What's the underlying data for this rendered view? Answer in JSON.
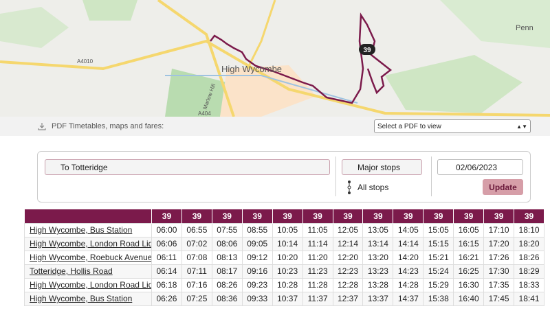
{
  "map": {
    "labels": {
      "penn": "Penn",
      "town": "High Wycombe",
      "a4010": "A4010",
      "a404": "A404",
      "marlow": "Marlow Hill"
    },
    "route_badge": "39"
  },
  "pdf_bar": {
    "label": "PDF Timetables, maps and fares:",
    "select": "Select a PDF to view"
  },
  "form": {
    "direction": "To Totteridge",
    "major_stops": "Major stops",
    "all_stops": "All stops",
    "date": "02/06/2023",
    "update": "Update"
  },
  "table": {
    "header": [
      "39",
      "39",
      "39",
      "39",
      "39",
      "39",
      "39",
      "39",
      "39",
      "39",
      "39",
      "39",
      "39"
    ],
    "rows": [
      {
        "stop": "High Wycombe, Bus Station",
        "times": [
          "06:00",
          "06:55",
          "07:55",
          "08:55",
          "10:05",
          "11:05",
          "12:05",
          "13:05",
          "14:05",
          "15:05",
          "16:05",
          "17:10",
          "18:10"
        ]
      },
      {
        "stop": "High Wycombe, London Road Lidl",
        "times": [
          "06:06",
          "07:02",
          "08:06",
          "09:05",
          "10:14",
          "11:14",
          "12:14",
          "13:14",
          "14:14",
          "15:15",
          "16:15",
          "17:20",
          "18:20"
        ]
      },
      {
        "stop": "High Wycombe, Roebuck Avenue",
        "times": [
          "06:11",
          "07:08",
          "08:13",
          "09:12",
          "10:20",
          "11:20",
          "12:20",
          "13:20",
          "14:20",
          "15:21",
          "16:21",
          "17:26",
          "18:26"
        ]
      },
      {
        "stop": "Totteridge, Hollis Road",
        "times": [
          "06:14",
          "07:11",
          "08:17",
          "09:16",
          "10:23",
          "11:23",
          "12:23",
          "13:23",
          "14:23",
          "15:24",
          "16:25",
          "17:30",
          "18:29"
        ]
      },
      {
        "stop": "High Wycombe, London Road Lidl",
        "times": [
          "06:18",
          "07:16",
          "08:26",
          "09:23",
          "10:28",
          "11:28",
          "12:28",
          "13:28",
          "14:28",
          "15:29",
          "16:30",
          "17:35",
          "18:33"
        ]
      },
      {
        "stop": "High Wycombe, Bus Station",
        "times": [
          "06:26",
          "07:25",
          "08:36",
          "09:33",
          "10:37",
          "11:37",
          "12:37",
          "13:37",
          "14:37",
          "15:38",
          "16:40",
          "17:45",
          "18:41"
        ]
      }
    ]
  }
}
